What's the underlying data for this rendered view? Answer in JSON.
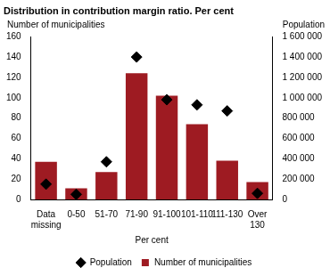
{
  "chart_data": {
    "type": "bar",
    "title": "Distribution in contribution margin ratio. Per cent",
    "x_label": "Per cent",
    "y_label": "Number of municipalities",
    "y2_label": "Population",
    "categories": [
      "Data missing",
      "0-50",
      "51-70",
      "71-90",
      "91-100",
      "101-110",
      "111-130",
      "Over 130"
    ],
    "series": [
      {
        "name": "Number of municipalities",
        "type": "bar",
        "color": "#9e1b22",
        "values": [
          37,
          11,
          27,
          124,
          102,
          74,
          38,
          17
        ]
      },
      {
        "name": "Population",
        "type": "scatter",
        "marker": "diamond",
        "color": "#000000",
        "axis": "y2",
        "values": [
          150000,
          50000,
          370000,
          1400000,
          980000,
          930000,
          870000,
          60000
        ]
      }
    ],
    "ylim": [
      0,
      160
    ],
    "yticks": [
      0,
      20,
      40,
      60,
      80,
      100,
      120,
      140,
      160
    ],
    "y2lim": [
      0,
      1600000
    ],
    "y2ticks": [
      0,
      {
        "value": 200000,
        "label": "200 000"
      },
      {
        "value": 400000,
        "label": "400 000"
      },
      {
        "value": 600000,
        "label": "600 000"
      },
      {
        "value": 800000,
        "label": "800 000"
      },
      {
        "value": 1000000,
        "label": "1 000 000"
      },
      {
        "value": 1200000,
        "label": "1 200 000"
      },
      {
        "value": 1400000,
        "label": "1 400 000"
      },
      {
        "value": 1600000,
        "label": "1 600 000"
      }
    ],
    "grid": false,
    "legend": "bottom"
  }
}
